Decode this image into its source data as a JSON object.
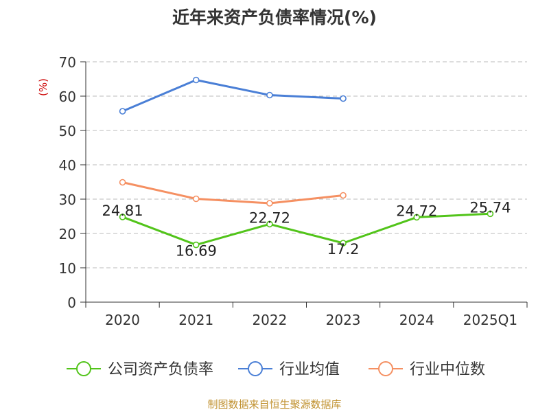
{
  "chart_data": {
    "type": "line",
    "title": "近年来资产负债率情况(%)",
    "ylabel": "(%)",
    "xlabel": "",
    "categories": [
      "2020",
      "2021",
      "2022",
      "2023",
      "2024",
      "2025Q1"
    ],
    "ylim": [
      0,
      70
    ],
    "yticks": [
      0,
      10,
      20,
      30,
      40,
      50,
      60,
      70
    ],
    "grid": true,
    "legend_position": "bottom",
    "series": [
      {
        "name": "公司资产负债率",
        "color": "#52c41a",
        "values": [
          24.81,
          16.69,
          22.72,
          17.2,
          24.72,
          25.74
        ],
        "labels": [
          "24.81",
          "16.69",
          "22.72",
          "17.2",
          "24.72",
          "25.74"
        ]
      },
      {
        "name": "行业均值",
        "color": "#4a7fd6",
        "values": [
          55.6,
          64.7,
          60.3,
          59.3,
          null,
          null
        ]
      },
      {
        "name": "行业中位数",
        "color": "#f59062",
        "values": [
          34.9,
          30.1,
          28.8,
          31.1,
          null,
          null
        ]
      }
    ]
  },
  "footer": {
    "source": "制图数据来自恒生聚源数据库"
  }
}
